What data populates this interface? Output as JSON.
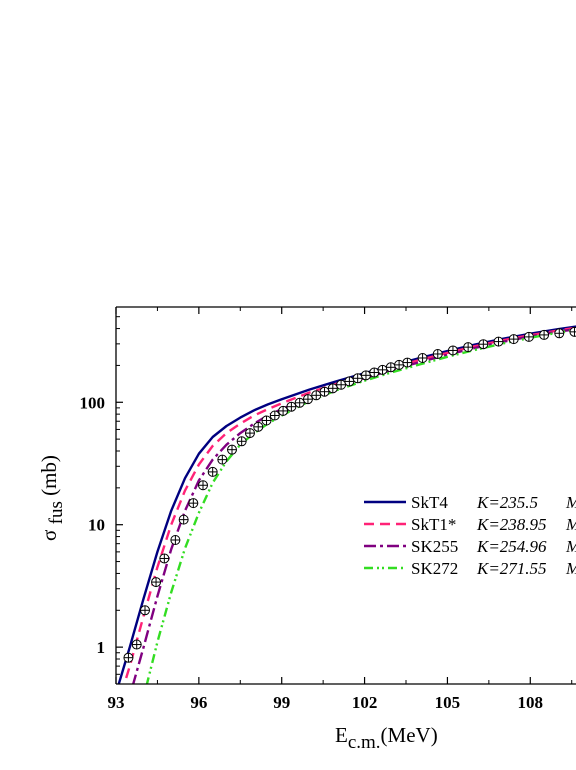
{
  "chart_data": {
    "type": "line",
    "x_ticks": [
      "93",
      "96",
      "99",
      "102",
      "105",
      "108"
    ],
    "x_tick_values": [
      93,
      96,
      99,
      102,
      105,
      108
    ],
    "y_ticks": [
      "1",
      "10",
      "100"
    ],
    "y_tick_values": [
      1,
      10,
      100
    ],
    "xlim": [
      93,
      109.8
    ],
    "ylim": [
      0.5,
      600
    ],
    "y_scale": "log",
    "xlabel": "E",
    "xlabel_sub": "c.m.",
    "xlabel_unit": "(MeV)",
    "ylabel_sigma": "σ",
    "ylabel_fus": "fus",
    "ylabel_unit": "(mb)",
    "legend_position": "center-right",
    "series": [
      {
        "name": "SkT4",
        "k_label": "K=235.5",
        "extra": "M",
        "color": "#000080",
        "dash": "solid",
        "x": [
          93.0,
          93.5,
          94.0,
          94.5,
          95.0,
          95.5,
          96.0,
          96.5,
          97.0,
          97.5,
          98.0,
          98.5,
          99.0,
          100.0,
          101.0,
          102.0,
          103.0,
          104.0,
          105.0,
          106.0,
          107.0,
          108.0,
          109.0,
          109.8
        ],
        "y": [
          0.42,
          1.0,
          2.5,
          6.0,
          13.0,
          24.0,
          38.0,
          52.0,
          64.0,
          75.0,
          86.0,
          96.0,
          106.0,
          127.0,
          149.0,
          173.0,
          200.0,
          230.0,
          262.0,
          296.0,
          330.0,
          363.0,
          395.0,
          420.0
        ]
      },
      {
        "name": "SkT1*",
        "k_label": "K=238.95",
        "extra": "M",
        "color": "#ff2277",
        "dash": "10,6",
        "x": [
          93.2,
          93.5,
          94.0,
          94.5,
          95.0,
          95.5,
          96.0,
          96.5,
          97.0,
          97.5,
          98.0,
          98.5,
          99.0,
          100.0,
          101.0,
          102.0,
          103.0,
          104.0,
          105.0,
          106.0,
          107.0,
          108.0,
          109.0,
          109.8
        ],
        "y": [
          0.42,
          0.7,
          1.8,
          4.5,
          10.0,
          19.0,
          31.0,
          44.0,
          56.0,
          67.0,
          78.0,
          88.0,
          98.0,
          120.0,
          142.0,
          166.0,
          192.0,
          222.0,
          253.0,
          287.0,
          321.0,
          354.0,
          386.0,
          410.0
        ]
      },
      {
        "name": "SK255",
        "k_label": "K=254.96",
        "extra": "M",
        "color": "#800080",
        "dash": "12,4,3,4",
        "x": [
          93.6,
          94.0,
          94.5,
          95.0,
          95.5,
          96.0,
          96.5,
          97.0,
          97.5,
          98.0,
          98.5,
          99.0,
          100.0,
          101.0,
          102.0,
          103.0,
          104.0,
          105.0,
          106.0,
          107.0,
          108.0,
          109.0,
          109.8
        ],
        "y": [
          0.48,
          1.0,
          2.6,
          6.3,
          13.0,
          23.0,
          34.0,
          45.0,
          56.0,
          67.0,
          78.0,
          88.0,
          110.0,
          133.0,
          157.0,
          184.0,
          213.0,
          244.0,
          278.0,
          312.0,
          345.0,
          377.0,
          400.0
        ]
      },
      {
        "name": "SK272",
        "k_label": "K=271.55",
        "extra": "M",
        "color": "#33dd22",
        "dash": "9,4,2,3,2,4",
        "x": [
          94.1,
          94.5,
          95.0,
          95.5,
          96.0,
          96.5,
          97.0,
          97.5,
          98.0,
          98.5,
          99.0,
          100.0,
          101.0,
          102.0,
          103.0,
          104.0,
          105.0,
          106.0,
          107.0,
          108.0,
          109.0,
          109.8
        ],
        "y": [
          0.48,
          1.1,
          2.8,
          6.4,
          12.5,
          22.0,
          33.0,
          45.0,
          56.0,
          67.0,
          78.0,
          102.0,
          126.0,
          150.0,
          176.0,
          204.0,
          235.0,
          268.0,
          302.0,
          336.0,
          370.0,
          395.0
        ]
      }
    ],
    "experiment": {
      "marker": "circle-plus",
      "x": [
        93.45,
        93.75,
        94.05,
        94.45,
        94.75,
        95.15,
        95.45,
        95.8,
        96.15,
        96.5,
        96.85,
        97.2,
        97.55,
        97.85,
        98.15,
        98.45,
        98.75,
        99.05,
        99.35,
        99.65,
        99.95,
        100.25,
        100.55,
        100.85,
        101.15,
        101.45,
        101.75,
        102.05,
        102.35,
        102.65,
        102.95,
        103.25,
        103.55,
        104.1,
        104.65,
        105.2,
        105.75,
        106.3,
        106.85,
        107.4,
        107.95,
        108.5,
        109.05,
        109.6
      ],
      "y": [
        0.82,
        1.05,
        2.0,
        3.4,
        5.3,
        7.5,
        11.0,
        15.0,
        21.0,
        27.0,
        34.0,
        41.0,
        48.0,
        56.0,
        63.0,
        71.0,
        78.0,
        85.0,
        92.0,
        99.0,
        106.0,
        114.0,
        122.0,
        130.0,
        139.0,
        148.0,
        157.0,
        166.0,
        175.0,
        184.0,
        193.0,
        202.0,
        211.0,
        230.0,
        248.0,
        265.0,
        282.0,
        298.0,
        313.0,
        328.0,
        342.0,
        355.0,
        366.0,
        376.0
      ]
    }
  }
}
